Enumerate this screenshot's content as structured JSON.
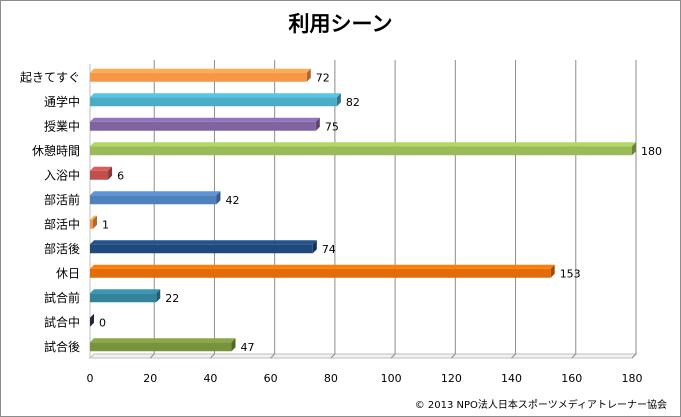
{
  "chart_data": {
    "type": "bar",
    "orientation": "horizontal",
    "title": "利用シーン",
    "xlabel": "",
    "ylabel": "",
    "categories": [
      "起きてすぐ",
      "通学中",
      "授業中",
      "休憩時間",
      "入浴中",
      "部活前",
      "部活中",
      "部活後",
      "休日",
      "試合前",
      "試合中",
      "試合後"
    ],
    "values": [
      72,
      82,
      75,
      180,
      6,
      42,
      1,
      74,
      153,
      22,
      0,
      47
    ],
    "colors": [
      "#f79646",
      "#4bacc6",
      "#8064a2",
      "#9bbb59",
      "#c0504d",
      "#4f81bd",
      "#f79646",
      "#1f497d",
      "#e36c09",
      "#31849b",
      "#403152",
      "#77933c"
    ],
    "xlim": [
      0,
      180
    ],
    "xticks": [
      0,
      20,
      40,
      60,
      80,
      100,
      120,
      140,
      160,
      180
    ],
    "grid": true,
    "legend": "none"
  },
  "footer": {
    "copyright": "© 2013 NPO法人日本スポーツメディアトレーナー協会"
  }
}
